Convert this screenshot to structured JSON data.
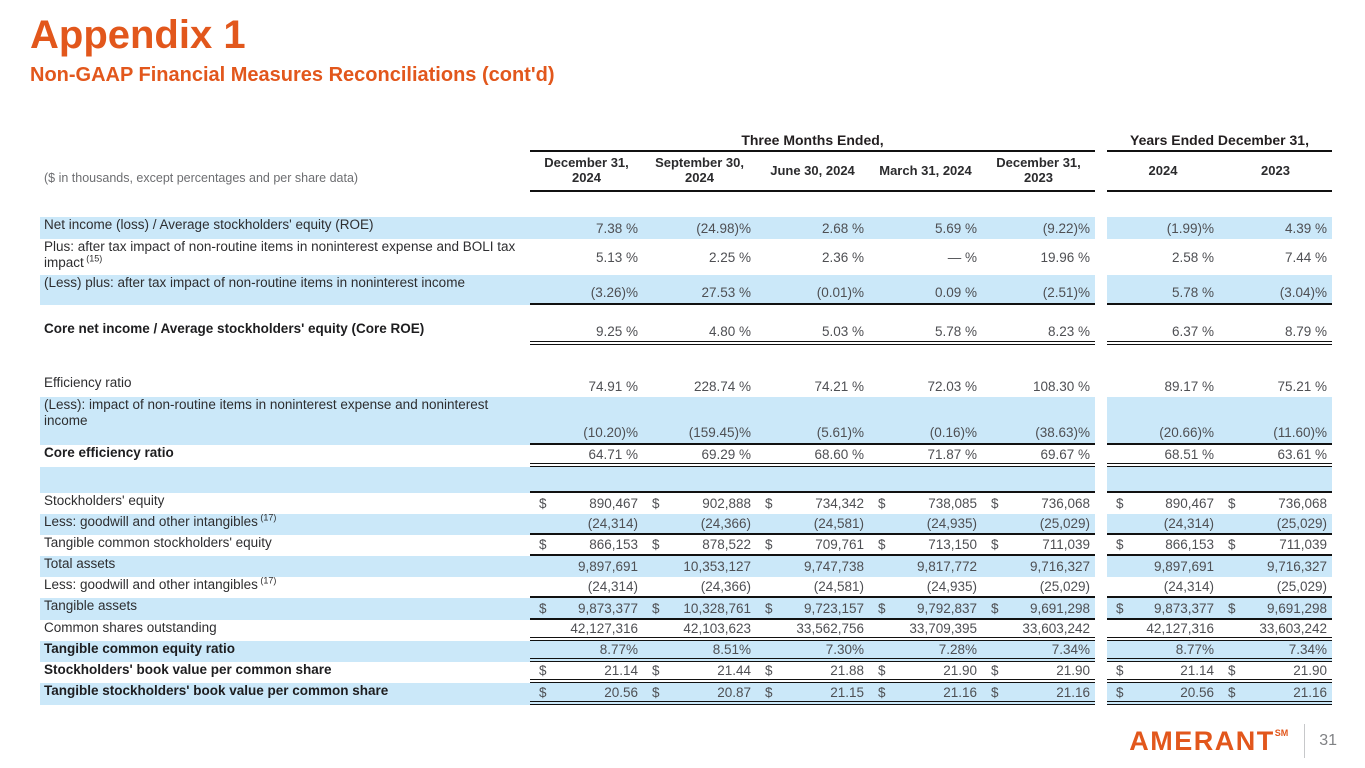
{
  "page": {
    "title": "Appendix 1",
    "subtitle": "Non-GAAP Financial Measures Reconciliations (cont'd)",
    "logo_text": "AMERANT",
    "logo_sup": "SM",
    "page_number": "31"
  },
  "colors": {
    "accent_orange": "#e2571c",
    "row_highlight_blue": "#cbe8f9",
    "rule_black": "#111111",
    "note_gray": "#6d6e71"
  },
  "table": {
    "note": "($ in thousands, except percentages and per share data)",
    "group_headers": {
      "quarters": "Three Months Ended,",
      "years": "Years Ended December 31,"
    },
    "column_headers": [
      "December 31, 2024",
      "September 30, 2024",
      "June 30, 2024",
      "March 31, 2024",
      "December 31, 2023",
      "2024",
      "2023"
    ],
    "rows": [
      {
        "label": "Net income (loss) / Average stockholders' equity (ROE)",
        "sup": "",
        "bold": false,
        "shaded": true,
        "dollar": false,
        "underline": "none",
        "cells": [
          "7.38 %",
          "(24.98)%",
          "2.68 %",
          "5.69 %",
          "(9.22)%",
          "(1.99)%",
          "4.39 %"
        ]
      },
      {
        "label": "Plus: after tax impact of non-routine items in noninterest expense and BOLI tax impact",
        "sup": "(15)",
        "bold": false,
        "shaded": false,
        "dollar": false,
        "underline": "none",
        "cells": [
          "5.13 %",
          "2.25 %",
          "2.36 %",
          "— %",
          "19.96 %",
          "2.58 %",
          "7.44 %"
        ]
      },
      {
        "label": "(Less) plus: after tax impact of non-routine items in noninterest income",
        "sup": "",
        "bold": false,
        "shaded": true,
        "dollar": false,
        "underline": "single",
        "cells": [
          "(3.26)%",
          "27.53 %",
          "(0.01)%",
          "0.09 %",
          "(2.51)%",
          "5.78 %",
          "(3.04)%"
        ]
      },
      {
        "label": "Core net income / Average stockholders' equity (Core ROE)",
        "sup": "",
        "bold": true,
        "shaded": false,
        "dollar": false,
        "underline": "double",
        "cells": [
          "9.25 %",
          "4.80 %",
          "5.03 %",
          "5.78 %",
          "8.23 %",
          "6.37 %",
          "8.79 %"
        ]
      },
      {
        "label": "Efficiency ratio",
        "sup": "",
        "bold": false,
        "shaded": false,
        "dollar": false,
        "underline": "none",
        "cells": [
          "74.91 %",
          "228.74 %",
          "74.21 %",
          "72.03 %",
          "108.30 %",
          "89.17 %",
          "75.21 %"
        ]
      },
      {
        "label": "(Less): impact of non-routine items in noninterest expense and noninterest income",
        "sup": "",
        "bold": false,
        "shaded": true,
        "dollar": false,
        "underline": "single",
        "cells": [
          "(10.20)%",
          "(159.45)%",
          "(5.61)%",
          "(0.16)%",
          "(38.63)%",
          "(20.66)%",
          "(11.60)%"
        ]
      },
      {
        "label": "Core efficiency ratio",
        "sup": "",
        "bold": true,
        "shaded": false,
        "dollar": false,
        "underline": "double",
        "cells": [
          "64.71 %",
          "69.29 %",
          "68.60 %",
          "71.87 %",
          "69.67 %",
          "68.51 %",
          "63.61 %"
        ]
      },
      {
        "label": "",
        "sup": "",
        "bold": false,
        "shaded": true,
        "dollar": false,
        "underline": "single",
        "cells": [
          "",
          "",
          "",
          "",
          "",
          "",
          ""
        ]
      },
      {
        "label": "Stockholders' equity",
        "sup": "",
        "bold": false,
        "shaded": false,
        "dollar": true,
        "underline": "none",
        "cells": [
          "890,467",
          "902,888",
          "734,342",
          "738,085",
          "736,068",
          "890,467",
          "736,068"
        ]
      },
      {
        "label": "Less: goodwill and other intangibles",
        "sup": "(17)",
        "bold": false,
        "shaded": true,
        "dollar": false,
        "underline": "single",
        "cells": [
          "(24,314)",
          "(24,366)",
          "(24,581)",
          "(24,935)",
          "(25,029)",
          "(24,314)",
          "(25,029)"
        ]
      },
      {
        "label": "Tangible common stockholders' equity",
        "sup": "",
        "bold": false,
        "shaded": false,
        "dollar": true,
        "underline": "single",
        "cells": [
          "866,153",
          "878,522",
          "709,761",
          "713,150",
          "711,039",
          "866,153",
          "711,039"
        ]
      },
      {
        "label": "Total assets",
        "sup": "",
        "bold": false,
        "shaded": true,
        "dollar": false,
        "underline": "none",
        "cells": [
          "9,897,691",
          "10,353,127",
          "9,747,738",
          "9,817,772",
          "9,716,327",
          "9,897,691",
          "9,716,327"
        ]
      },
      {
        "label": "Less: goodwill and other intangibles",
        "sup": "(17)",
        "bold": false,
        "shaded": false,
        "dollar": false,
        "underline": "single",
        "cells": [
          "(24,314)",
          "(24,366)",
          "(24,581)",
          "(24,935)",
          "(25,029)",
          "(24,314)",
          "(25,029)"
        ]
      },
      {
        "label": "Tangible assets",
        "sup": "",
        "bold": false,
        "shaded": true,
        "dollar": true,
        "underline": "single",
        "cells": [
          "9,873,377",
          "10,328,761",
          "9,723,157",
          "9,792,837",
          "9,691,298",
          "9,873,377",
          "9,691,298"
        ]
      },
      {
        "label": "Common shares outstanding",
        "sup": "",
        "bold": false,
        "shaded": false,
        "dollar": false,
        "underline": "double",
        "cells": [
          "42,127,316",
          "42,103,623",
          "33,562,756",
          "33,709,395",
          "33,603,242",
          "42,127,316",
          "33,603,242"
        ]
      },
      {
        "label": "Tangible common equity ratio",
        "sup": "",
        "bold": true,
        "shaded": true,
        "dollar": false,
        "underline": "double",
        "cells": [
          "8.77%",
          "8.51%",
          "7.30%",
          "7.28%",
          "7.34%",
          "8.77%",
          "7.34%"
        ]
      },
      {
        "label": "Stockholders' book value per common share",
        "sup": "",
        "bold": true,
        "shaded": false,
        "dollar": true,
        "underline": "double",
        "cells": [
          "21.14",
          "21.44",
          "21.88",
          "21.90",
          "21.90",
          "21.14",
          "21.90"
        ]
      },
      {
        "label": "Tangible stockholders' book value per common share",
        "sup": "",
        "bold": true,
        "shaded": true,
        "dollar": true,
        "underline": "double",
        "cells": [
          "20.56",
          "20.87",
          "21.15",
          "21.16",
          "21.16",
          "20.56",
          "21.16"
        ]
      }
    ]
  }
}
